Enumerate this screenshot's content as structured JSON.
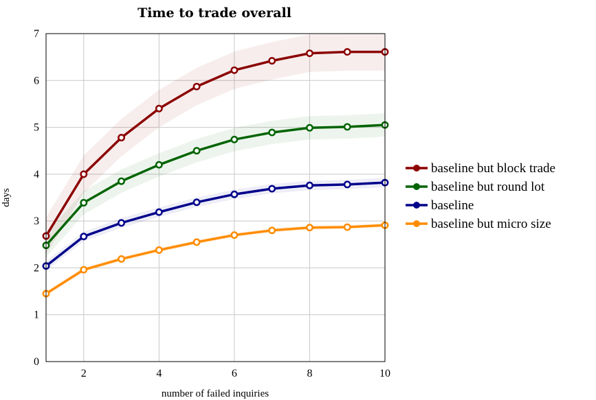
{
  "chart_data": {
    "type": "line",
    "title": "Time to trade overall",
    "xlabel": "number of failed inquiries",
    "ylabel": "days",
    "xlim": [
      1,
      10
    ],
    "ylim": [
      0,
      7
    ],
    "xticks": [
      2,
      4,
      6,
      8,
      10
    ],
    "yticks": [
      0,
      1,
      2,
      3,
      4,
      5,
      6,
      7
    ],
    "grid": true,
    "legend_position": "right",
    "x": [
      1,
      2,
      3,
      4,
      5,
      6,
      7,
      8,
      9,
      10
    ],
    "series": [
      {
        "name": "baseline but block trade",
        "color": "#8b0000",
        "values": [
          2.68,
          4.0,
          4.78,
          5.4,
          5.87,
          6.22,
          6.42,
          6.58,
          6.61,
          6.61
        ],
        "band": 0.4
      },
      {
        "name": "baseline but round lot",
        "color": "#006400",
        "values": [
          2.48,
          3.39,
          3.85,
          4.2,
          4.5,
          4.74,
          4.89,
          4.99,
          5.01,
          5.05
        ],
        "band": 0.25
      },
      {
        "name": "baseline",
        "color": "#00008b",
        "values": [
          2.04,
          2.67,
          2.96,
          3.19,
          3.4,
          3.57,
          3.69,
          3.76,
          3.78,
          3.82
        ],
        "band": 0.1
      },
      {
        "name": "baseline but micro size",
        "color": "#ff8c00",
        "values": [
          1.45,
          1.96,
          2.19,
          2.38,
          2.55,
          2.7,
          2.8,
          2.86,
          2.87,
          2.91
        ],
        "band": 0.05
      }
    ]
  }
}
